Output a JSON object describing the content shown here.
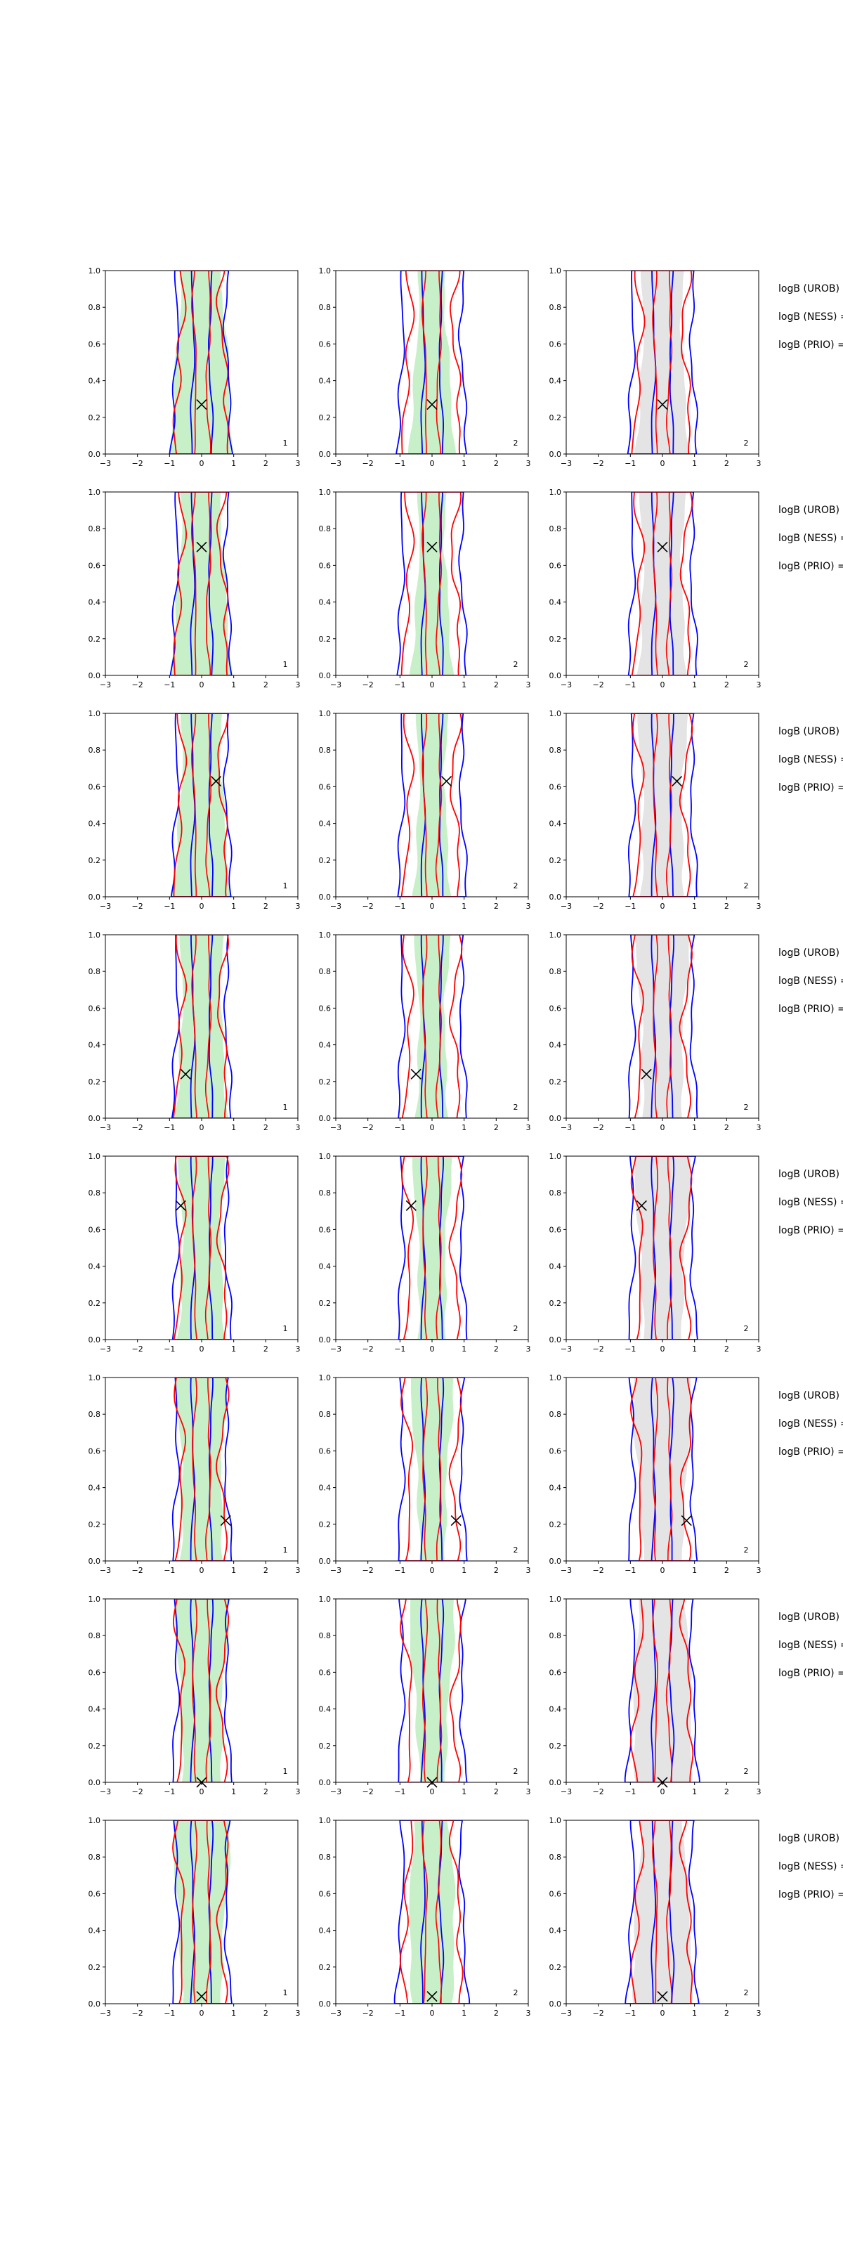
{
  "chart_data": {
    "type": "contour-grid",
    "rows": 8,
    "cols": 3,
    "xlim": [
      -3,
      3
    ],
    "ylim": [
      0.0,
      1.0
    ],
    "x_ticks": [
      "−3",
      "−2",
      "−1",
      "0",
      "1",
      "2",
      "3"
    ],
    "y_ticks": [
      "0.0",
      "0.2",
      "0.4",
      "0.6",
      "0.8",
      "1.0"
    ],
    "x_tick_values": [
      -3,
      -2,
      -1,
      0,
      1,
      2,
      3
    ],
    "y_tick_values": [
      0.0,
      0.2,
      0.4,
      0.6,
      0.8,
      1.0
    ],
    "grid": false,
    "colors": {
      "blue": "#0000ff",
      "red": "#ff0000",
      "green_fill": "#c8f0c8",
      "gray_fill": "#e4e4e4",
      "marker": "#000000"
    },
    "side_labels": [
      "logB (UROB) =",
      "logB (NESS) =",
      "logB (PRIO) ="
    ],
    "panels": [
      {
        "row": 1,
        "markers": [
          [
            0.0,
            0.27
          ],
          [
            0.0,
            0.27
          ],
          [
            0.0,
            0.27
          ]
        ],
        "annotations": [
          "1",
          "2",
          "2"
        ]
      },
      {
        "row": 2,
        "markers": [
          [
            0.0,
            0.7
          ],
          [
            0.0,
            0.7
          ],
          [
            0.0,
            0.7
          ]
        ],
        "annotations": [
          "1",
          "2",
          "2"
        ]
      },
      {
        "row": 3,
        "markers": [
          [
            0.45,
            0.63
          ],
          [
            0.45,
            0.63
          ],
          [
            0.45,
            0.63
          ]
        ],
        "annotations": [
          "1",
          "2",
          "2"
        ]
      },
      {
        "row": 4,
        "markers": [
          [
            -0.5,
            0.24
          ],
          [
            -0.5,
            0.24
          ],
          [
            -0.5,
            0.24
          ]
        ],
        "annotations": [
          "1",
          "2",
          "2"
        ]
      },
      {
        "row": 5,
        "markers": [
          [
            -0.65,
            0.73
          ],
          [
            -0.65,
            0.73
          ],
          [
            -0.65,
            0.73
          ]
        ],
        "annotations": [
          "1",
          "2",
          "2"
        ]
      },
      {
        "row": 6,
        "markers": [
          [
            0.75,
            0.22
          ],
          [
            0.75,
            0.22
          ],
          [
            0.75,
            0.22
          ]
        ],
        "annotations": [
          "1",
          "2",
          "2"
        ]
      },
      {
        "row": 7,
        "markers": [
          [
            0.0,
            0.0
          ],
          [
            0.0,
            0.0
          ],
          [
            0.0,
            0.0
          ]
        ],
        "annotations": [
          "1",
          "2",
          "2"
        ]
      },
      {
        "row": 8,
        "markers": [
          [
            0.0,
            0.04
          ],
          [
            0.0,
            0.04
          ],
          [
            0.0,
            0.04
          ]
        ],
        "annotations": [
          "1",
          "2",
          "2"
        ]
      }
    ]
  }
}
